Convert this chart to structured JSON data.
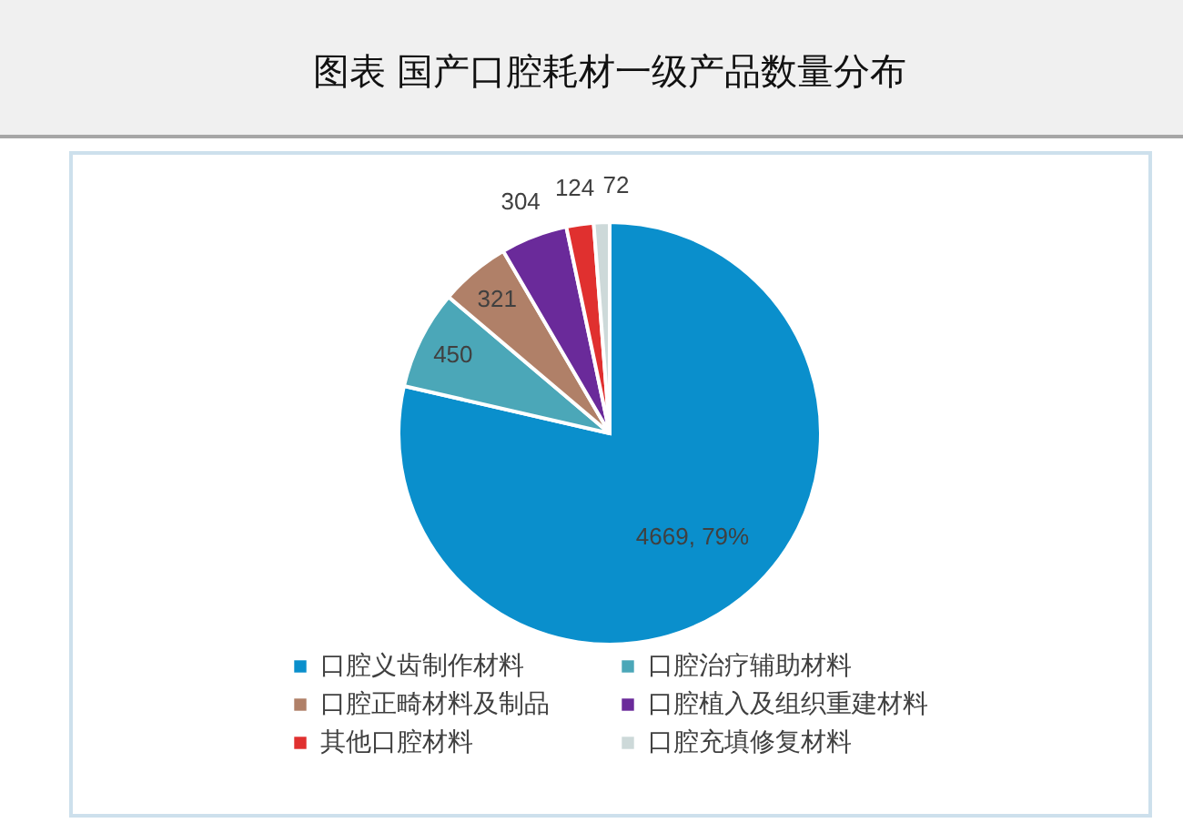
{
  "chart_data": {
    "type": "pie",
    "title": "图表 国产口腔耗材一级产品数量分布",
    "categories": [
      "口腔义齿制作材料",
      "口腔治疗辅助材料",
      "口腔正畸材料及制品",
      "口腔植入及组织重建材料",
      "其他口腔材料",
      "口腔充填修复材料"
    ],
    "values": [
      4669,
      450,
      321,
      304,
      124,
      72
    ],
    "colors": [
      "#0a8fcc",
      "#4ba7b8",
      "#b08068",
      "#6a2a9a",
      "#e0302f",
      "#cdd9d9"
    ],
    "value_labels": [
      "4669, 79%",
      "450",
      "321",
      "304",
      "124",
      "72"
    ],
    "legend": "bottom"
  }
}
